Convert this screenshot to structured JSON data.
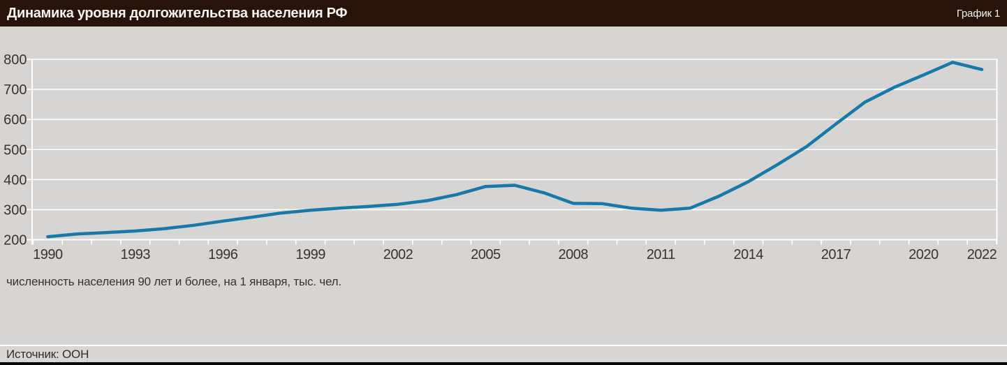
{
  "header": {
    "title": "Динамика уровня долгожительства населения РФ",
    "figure_label": "График 1"
  },
  "chart": {
    "caption": "численность населения 90 лет и более, на 1 января, тыс. чел."
  },
  "footer": {
    "source": "Источник: ООН"
  },
  "colors": {
    "header_bg": "#271309",
    "header_text": "#f7f3ef",
    "chart_bg": "#d7d5d3",
    "grid": "#ffffff",
    "axis_text": "#3b332c",
    "line": "#1779a8",
    "bottom_bar": "#0a0a0a"
  },
  "chart_data": {
    "type": "line",
    "title": "Динамика уровня долгожительства населения РФ",
    "subtitle": "численность населения 90 лет и более, на 1 января, тыс. чел.",
    "x": [
      1990,
      1991,
      1992,
      1993,
      1994,
      1995,
      1996,
      1997,
      1998,
      1999,
      2000,
      2001,
      2002,
      2003,
      2004,
      2005,
      2006,
      2007,
      2008,
      2009,
      2010,
      2011,
      2012,
      2013,
      2014,
      2015,
      2016,
      2017,
      2018,
      2019,
      2020,
      2021,
      2022
    ],
    "values": [
      210,
      219,
      224,
      229,
      237,
      248,
      262,
      275,
      289,
      298,
      305,
      311,
      318,
      330,
      350,
      377,
      381,
      356,
      321,
      320,
      305,
      298,
      305,
      345,
      393,
      450,
      510,
      585,
      658,
      707,
      748,
      790,
      766
    ],
    "ylim": [
      200,
      800
    ],
    "yticks": [
      200,
      300,
      400,
      500,
      600,
      700,
      800
    ],
    "xtick_labeled_years": [
      1990,
      1993,
      1996,
      1999,
      2002,
      2005,
      2008,
      2011,
      2014,
      2017,
      2020,
      2022
    ],
    "grid": "horizontal",
    "legend": "none",
    "line_color": "#1779a8",
    "source": "ООН"
  }
}
